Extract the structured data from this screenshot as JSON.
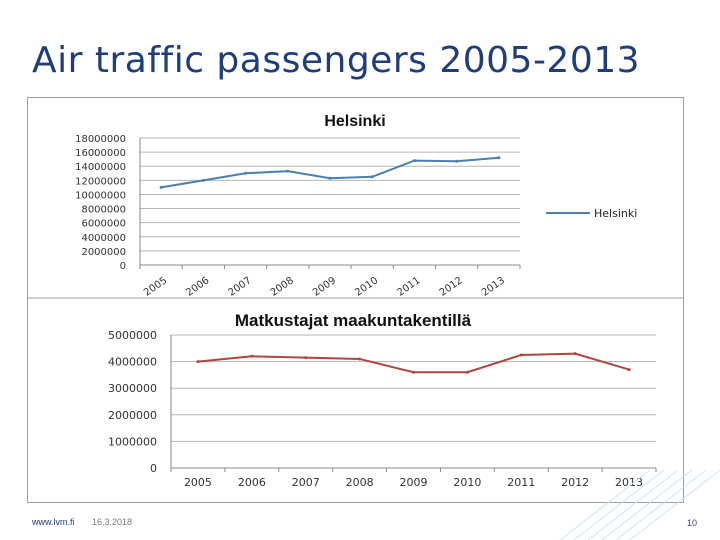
{
  "page": {
    "title": "Air traffic passengers 2005-2013"
  },
  "footer": {
    "url": "www.lvm.fi",
    "date": "16.3.2018",
    "page_number": "10"
  },
  "chart_data": [
    {
      "type": "line",
      "title": "Helsinki",
      "categories": [
        "2005",
        "2006",
        "2007",
        "2008",
        "2009",
        "2010",
        "2011",
        "2012",
        "2013"
      ],
      "y_ticks": [
        "0",
        "2000000",
        "4000000",
        "6000000",
        "8000000",
        "10000000",
        "12000000",
        "14000000",
        "16000000",
        "18000000"
      ],
      "ylim": [
        0,
        18000000
      ],
      "series": [
        {
          "name": "Helsinki",
          "color": "#4a7fb5",
          "values": [
            11000000,
            12000000,
            13000000,
            13300000,
            12300000,
            12500000,
            14800000,
            14700000,
            15200000
          ]
        }
      ],
      "legend": "right",
      "grid": true
    },
    {
      "type": "line",
      "title": "Matkustajat maakuntakentillä",
      "categories": [
        "2005",
        "2006",
        "2007",
        "2008",
        "2009",
        "2010",
        "2011",
        "2012",
        "2013"
      ],
      "y_ticks": [
        "0",
        "1000000",
        "2000000",
        "3000000",
        "4000000",
        "5000000"
      ],
      "ylim": [
        0,
        5000000
      ],
      "series": [
        {
          "color": "#b0463f",
          "values": [
            4000000,
            4200000,
            4150000,
            4100000,
            3600000,
            3600000,
            4250000,
            4300000,
            3700000
          ]
        }
      ],
      "grid": true
    }
  ]
}
